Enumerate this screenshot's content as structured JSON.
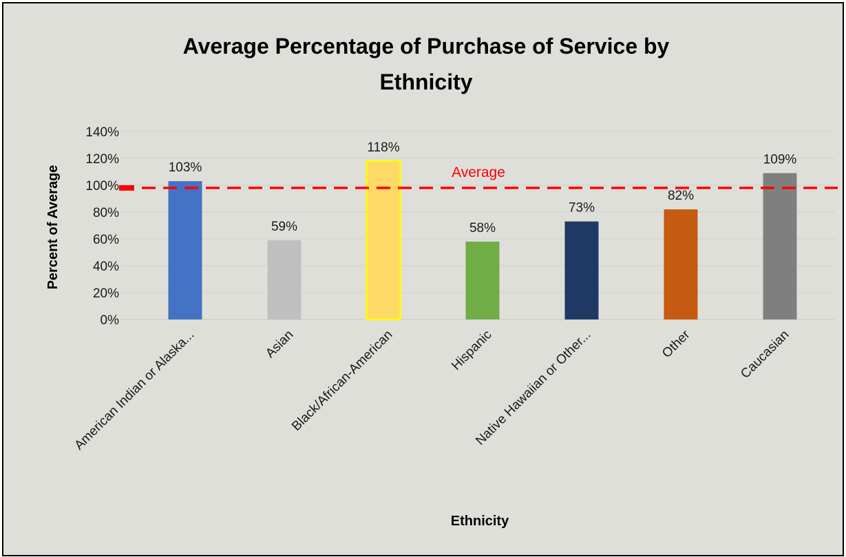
{
  "chart_data": {
    "type": "bar",
    "title_lines": [
      "Average Percentage of Purchase of Service by",
      "Ethnicity"
    ],
    "xlabel": "Ethnicity",
    "ylabel": "Percent of Average",
    "ylim": [
      0,
      140
    ],
    "yticks": [
      0,
      20,
      40,
      60,
      80,
      100,
      120,
      140
    ],
    "ytick_labels": [
      "0%",
      "20%",
      "40%",
      "60%",
      "80%",
      "100%",
      "120%",
      "140%"
    ],
    "grid": true,
    "categories": [
      "American Indian or Alaska...",
      "Asian",
      "Black/African-American",
      "Hispanic",
      "Native Hawaiian or Other...",
      "Other",
      "Caucasian"
    ],
    "values": [
      103,
      59,
      118,
      58,
      73,
      82,
      109
    ],
    "data_labels": [
      "103%",
      "59%",
      "118%",
      "58%",
      "73%",
      "82%",
      "109%"
    ],
    "colors": [
      "#4472c4",
      "#bfbfbf",
      "#ffd966",
      "#70ad47",
      "#203864",
      "#c55a11",
      "#7f7f7f"
    ],
    "highlight_border": "#ffff00",
    "reference_line": {
      "value": 98,
      "label": "Average",
      "color": "#ff0000"
    }
  }
}
